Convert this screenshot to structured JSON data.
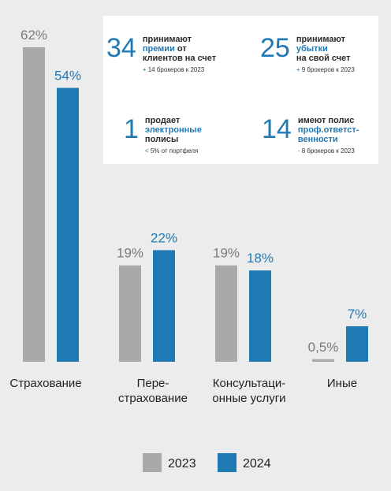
{
  "chart_data": {
    "type": "bar",
    "categories": [
      [
        "Страхование"
      ],
      [
        "Пере-",
        "страхование"
      ],
      [
        "Консультаци-",
        "онные услуги"
      ],
      [
        "Иные"
      ]
    ],
    "series": [
      {
        "name": "2023",
        "color": "#a9a9a9",
        "values": [
          62,
          19,
          19,
          0.5
        ],
        "labels": [
          "62%",
          "19%",
          "19%",
          "0,5%"
        ]
      },
      {
        "name": "2024",
        "color": "#1f7ab4",
        "values": [
          54,
          22,
          18,
          7
        ],
        "labels": [
          "54%",
          "22%",
          "18%",
          "7%"
        ]
      }
    ],
    "ylim": [
      0,
      62
    ],
    "grid": false,
    "legend": "bottom"
  },
  "stats": [
    {
      "number": "34",
      "lines": [
        {
          "text": "принимают"
        },
        {
          "text": "премии",
          "suffix": " от",
          "blue": true
        },
        {
          "text": "клиентов на счет"
        }
      ],
      "note_sign": "+",
      "note": " 14 брокеров к 2023"
    },
    {
      "number": "25",
      "lines": [
        {
          "text": "принимают"
        },
        {
          "text": "убытки",
          "blue": true
        },
        {
          "text": "на свой счет"
        }
      ],
      "note_sign": "+",
      "note": " 9 брокеров к 2023"
    },
    {
      "number": "1",
      "lines": [
        {
          "text": "продает"
        },
        {
          "text": "электронные",
          "blue": true
        },
        {
          "text": "полисы"
        }
      ],
      "note_sign": "<",
      "note": " 5% от портфеля"
    },
    {
      "number": "14",
      "lines": [
        {
          "text": "имеют полис"
        },
        {
          "text": "проф.ответст-",
          "blue": true
        },
        {
          "text": "венности",
          "blue": true
        }
      ],
      "note_sign": "-",
      "note": " 8 брокеров к 2023"
    }
  ]
}
